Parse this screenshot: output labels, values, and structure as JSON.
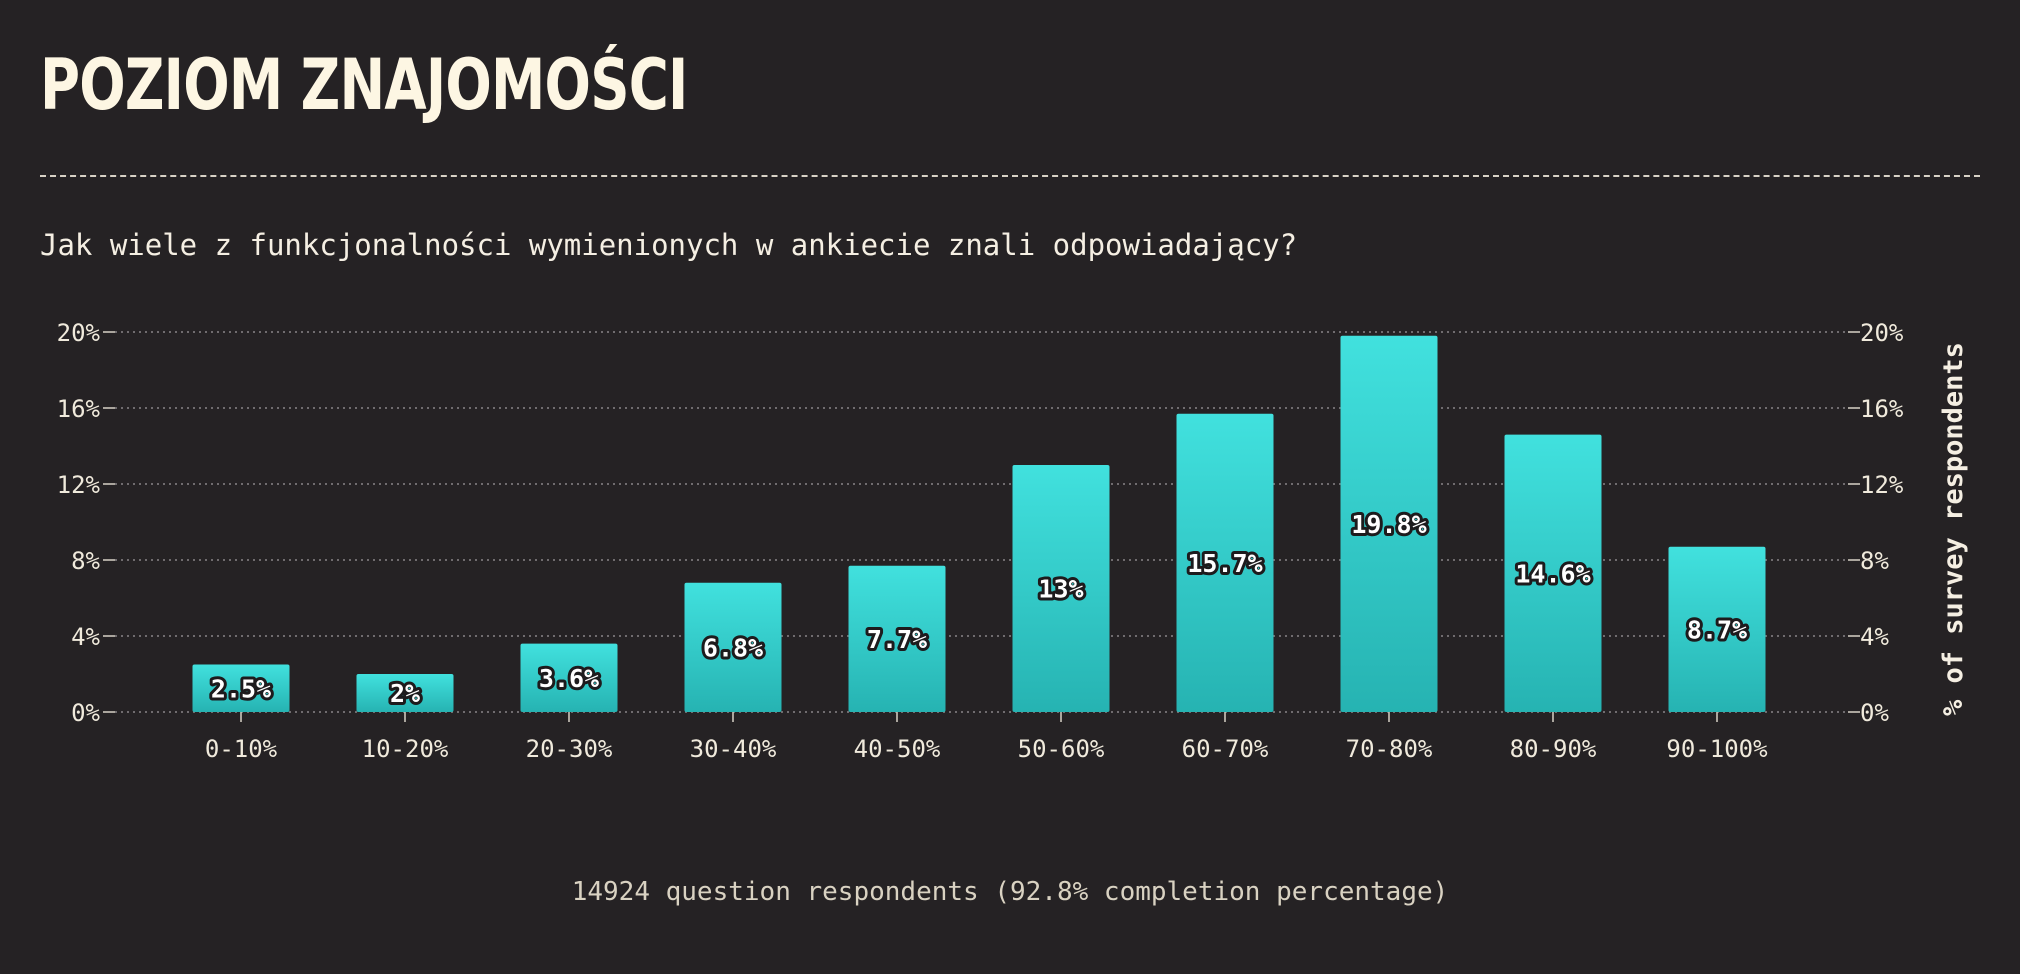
{
  "header": {
    "title": "POZIOM ZNAJOMOŚCI",
    "subtitle": "Jak wiele z funkcjonalności wymienionych w ankiecie znali odpowiadający?"
  },
  "footer": {
    "note": "14924 question respondents (92.8% completion percentage)"
  },
  "colors": {
    "background": "#252224",
    "bar_top": "#41e1de",
    "bar_bottom": "#26b3b2",
    "text": "#f5efe3"
  },
  "chart_data": {
    "type": "bar",
    "title": "",
    "xlabel": "",
    "ylabel": "% of survey respondents",
    "ylim": [
      0,
      20
    ],
    "yticks": [
      0,
      4,
      8,
      12,
      16,
      20
    ],
    "ytick_labels": [
      "0%",
      "4%",
      "8%",
      "12%",
      "16%",
      "20%"
    ],
    "grid": true,
    "axes_both_sides": true,
    "categories": [
      "0-10%",
      "10-20%",
      "20-30%",
      "30-40%",
      "40-50%",
      "50-60%",
      "60-70%",
      "70-80%",
      "80-90%",
      "90-100%"
    ],
    "values": [
      2.5,
      2,
      3.6,
      6.8,
      7.7,
      13,
      15.7,
      19.8,
      14.6,
      8.7
    ],
    "value_labels": [
      "2.5%",
      "2%",
      "3.6%",
      "6.8%",
      "7.7%",
      "13%",
      "15.7%",
      "19.8%",
      "14.6%",
      "8.7%"
    ]
  }
}
